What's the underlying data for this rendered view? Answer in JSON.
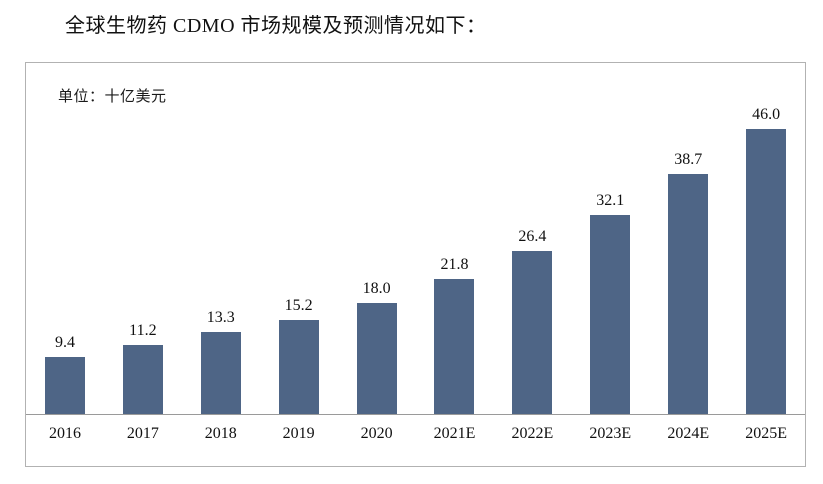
{
  "title": "全球生物药 CDMO 市场规模及预测情况如下：",
  "chart_data": {
    "type": "bar",
    "title": "全球生物药 CDMO 市场规模及预测情况如下：",
    "unit": "单位：十亿美元",
    "categories": [
      "2016",
      "2017",
      "2018",
      "2019",
      "2020",
      "2021E",
      "2022E",
      "2023E",
      "2024E",
      "2025E"
    ],
    "values": [
      9.4,
      11.2,
      13.3,
      15.2,
      18.0,
      21.8,
      26.4,
      32.1,
      38.7,
      46.0
    ],
    "value_labels": [
      "9.4",
      "11.2",
      "13.3",
      "15.2",
      "18.0",
      "21.8",
      "26.4",
      "32.1",
      "38.7",
      "46.0"
    ],
    "xlabel": "",
    "ylabel": "",
    "ylim": [
      0,
      46
    ],
    "grid": false,
    "legend": false,
    "data_labels_position": "above-bar",
    "bar_color": "#4e6586",
    "box_border_color": "#b2b2b2",
    "axis_line_color": "#9a9a9a"
  }
}
